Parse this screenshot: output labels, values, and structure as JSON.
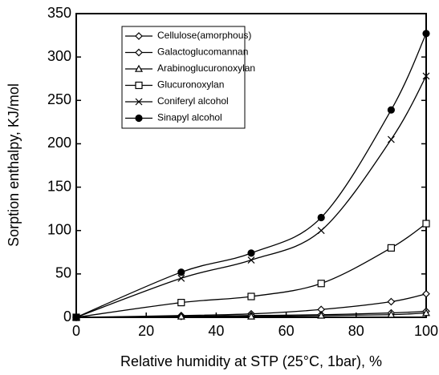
{
  "chart_data": {
    "type": "line",
    "xlabel": "Relative humidity at STP (25°C, 1bar), %",
    "ylabel": "Sorption enthalpy, KJ/mol",
    "x": [
      0,
      30,
      50,
      70,
      90,
      100
    ],
    "series": [
      {
        "name": "Cellulose(amorphous)",
        "color": "#000000",
        "marker": "diamond",
        "values": [
          0,
          2,
          4,
          9,
          18,
          27
        ]
      },
      {
        "name": "Galactoglucomannan",
        "color": "#000000",
        "marker": "diamond",
        "values": [
          0,
          1,
          2,
          3,
          5,
          7
        ]
      },
      {
        "name": "Arabinoglucuronoxylan",
        "color": "#000000",
        "marker": "triangle",
        "values": [
          0,
          1,
          1,
          2,
          3,
          5
        ]
      },
      {
        "name": "Glucuronoxylan",
        "color": "#000000",
        "marker": "square",
        "values": [
          0,
          17,
          24,
          39,
          80,
          108
        ]
      },
      {
        "name": "Coniferyl alcohol",
        "color": "#000000",
        "marker": "x",
        "values": [
          0,
          45,
          66,
          100,
          205,
          278
        ]
      },
      {
        "name": "Sinapyl alcohol",
        "color": "#000000",
        "marker": "circle",
        "values": [
          0,
          52,
          74,
          115,
          239,
          327
        ]
      }
    ],
    "xlim": [
      0,
      100
    ],
    "xticks": [
      0,
      20,
      40,
      60,
      80,
      100
    ],
    "ylim": [
      0,
      350
    ],
    "yticks": [
      0,
      50,
      100,
      150,
      200,
      250,
      300,
      350
    ],
    "legend": "upper left"
  }
}
